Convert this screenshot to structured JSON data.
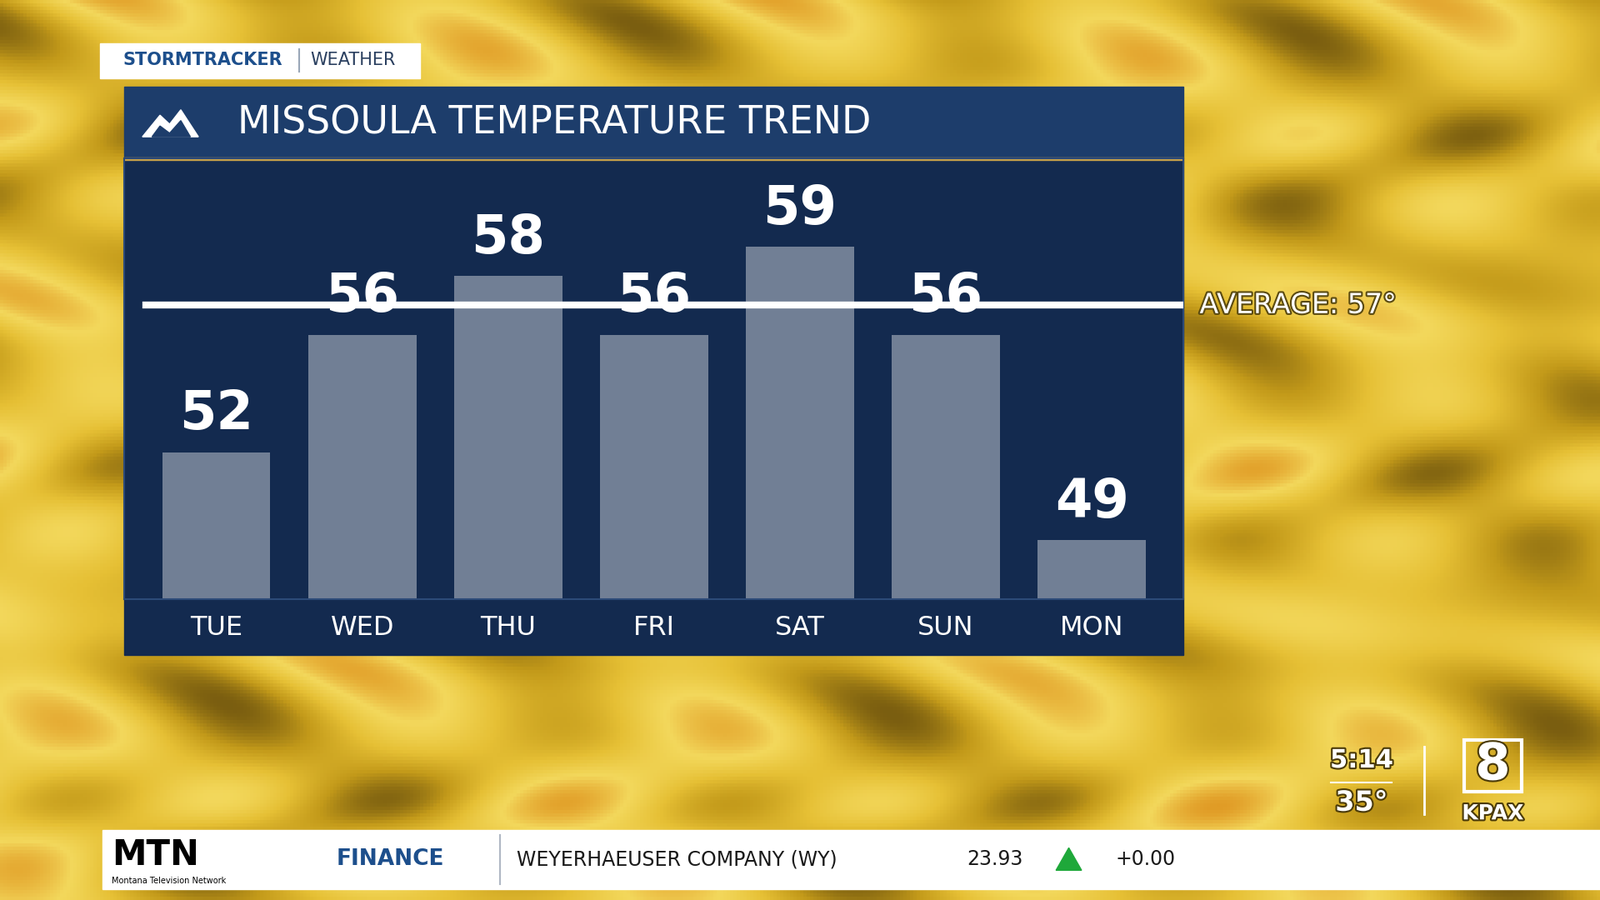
{
  "chart_data": {
    "type": "bar",
    "title": "MISSOULA TEMPERATURE TREND",
    "categories": [
      "TUE",
      "WED",
      "THU",
      "FRI",
      "SAT",
      "SUN",
      "MON"
    ],
    "values": [
      52,
      56,
      58,
      56,
      59,
      56,
      49
    ],
    "color": "#7a879c",
    "ylim": [
      47,
      62
    ],
    "data_labels": true,
    "tick_labels": "x",
    "annotations": [
      {
        "text": "AVERAGE: 57°",
        "value": 57
      }
    ]
  },
  "header": {
    "brand": "STORMTRACKER",
    "section": "WEATHER"
  },
  "station": {
    "time": "5:14",
    "temperature": "35°",
    "channel": "8",
    "call_sign": "KPAX"
  },
  "ticker": {
    "network": "MTN",
    "network_name": "Montana Television Network",
    "category": "FINANCE",
    "company": "WEYERHAEUSER COMPANY (WY)",
    "price": "23.93",
    "change": "+0.00"
  }
}
